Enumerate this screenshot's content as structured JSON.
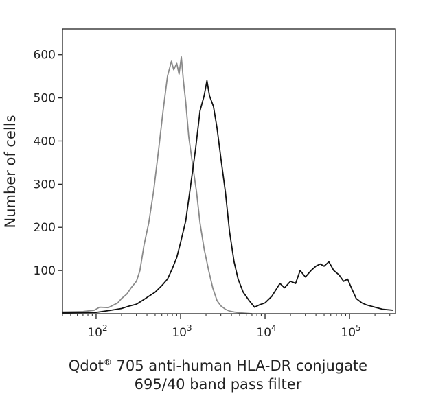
{
  "chart_data": {
    "type": "line",
    "xscale": "log",
    "xlim": [
      40,
      350000
    ],
    "ylim": [
      0,
      660
    ],
    "xlabel": {
      "line1_prefix": "Qdot",
      "line1_sup": "®",
      "line1_suffix": " 705 anti-human HLA-DR conjugate",
      "line2": "695/40 band pass filter"
    },
    "ylabel": "Number of cells",
    "y_ticks": [
      {
        "value": 100,
        "label": "100"
      },
      {
        "value": 200,
        "label": "200"
      },
      {
        "value": 300,
        "label": "300"
      },
      {
        "value": 400,
        "label": "400"
      },
      {
        "value": 500,
        "label": "500"
      },
      {
        "value": 600,
        "label": "600"
      }
    ],
    "x_major_ticks": [
      {
        "value": 100,
        "base": "10",
        "exp": "2"
      },
      {
        "value": 1000,
        "base": "10",
        "exp": "3"
      },
      {
        "value": 10000,
        "base": "10",
        "exp": "4"
      },
      {
        "value": 100000,
        "base": "10",
        "exp": "5"
      }
    ],
    "grid": false,
    "legend": "none",
    "series": [
      {
        "color": "#8a8a8a",
        "x": [
          40,
          70,
          95,
          110,
          140,
          180,
          200,
          230,
          260,
          300,
          330,
          370,
          420,
          480,
          550,
          620,
          700,
          780,
          830,
          900,
          960,
          1020,
          1080,
          1150,
          1250,
          1400,
          1550,
          1700,
          1900,
          2150,
          2400,
          2700,
          3000,
          3400,
          3800,
          4300,
          5000,
          6000,
          7000
        ],
        "y": [
          4,
          5,
          8,
          15,
          14,
          25,
          35,
          45,
          60,
          75,
          100,
          160,
          210,
          285,
          380,
          470,
          550,
          585,
          565,
          580,
          555,
          595,
          540,
          490,
          410,
          340,
          280,
          210,
          150,
          100,
          60,
          30,
          18,
          10,
          6,
          4,
          2,
          1,
          0
        ]
      },
      {
        "color": "#111111",
        "x": [
          40,
          100,
          150,
          200,
          250,
          300,
          350,
          420,
          500,
          600,
          700,
          800,
          900,
          1000,
          1150,
          1300,
          1500,
          1700,
          1900,
          2050,
          2200,
          2450,
          2700,
          3000,
          3400,
          3800,
          4300,
          4800,
          5500,
          6500,
          7500,
          8500,
          10000,
          12000,
          15000,
          17000,
          20000,
          23000,
          26000,
          30000,
          35000,
          40000,
          45000,
          50000,
          57000,
          65000,
          75000,
          85000,
          95000,
          105000,
          120000,
          140000,
          160000,
          200000,
          250000,
          330000
        ],
        "y": [
          2,
          3,
          8,
          12,
          18,
          22,
          30,
          40,
          50,
          65,
          80,
          105,
          130,
          165,
          215,
          290,
          380,
          470,
          505,
          540,
          505,
          480,
          430,
          360,
          280,
          190,
          120,
          80,
          50,
          30,
          15,
          20,
          25,
          40,
          70,
          60,
          75,
          70,
          100,
          85,
          100,
          110,
          115,
          110,
          120,
          100,
          90,
          75,
          80,
          60,
          35,
          25,
          20,
          15,
          10,
          8
        ]
      }
    ]
  }
}
